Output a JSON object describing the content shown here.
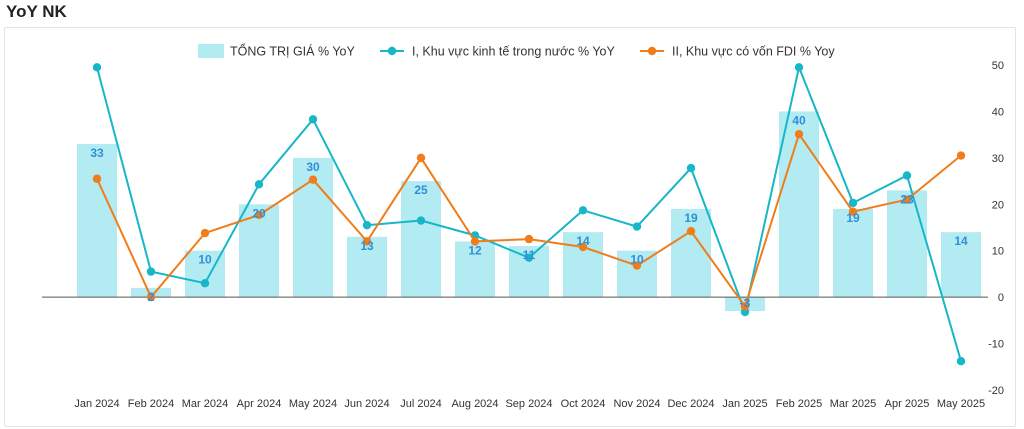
{
  "header": {
    "title": "YoY NK"
  },
  "chart_data": {
    "type": "bar",
    "categories": [
      "Jan 2024",
      "Feb 2024",
      "Mar 2024",
      "Apr 2024",
      "May 2024",
      "Jun 2024",
      "Jul 2024",
      "Aug 2024",
      "Sep 2024",
      "Oct 2024",
      "Nov 2024",
      "Dec 2024",
      "Jan 2025",
      "Feb 2025",
      "Mar 2025",
      "Apr 2025",
      "May 2025"
    ],
    "series": [
      {
        "name": "TỔNG TRỊ GIÁ % YoY",
        "kind": "bar",
        "color": "#b3ebf2",
        "values": [
          33,
          2,
          10,
          20,
          30,
          13,
          25,
          12,
          11,
          14,
          10,
          19,
          -3,
          40,
          19,
          23,
          14
        ]
      },
      {
        "name": "I, Khu vực kinh tế trong nước % YoY",
        "kind": "line",
        "color": "#17b6c9",
        "values": [
          49.5,
          5.5,
          3,
          24.3,
          38.3,
          15.5,
          16.5,
          13.3,
          8.5,
          18.7,
          15.2,
          27.8,
          -3.2,
          49.5,
          20.3,
          26.2,
          -13.8
        ]
      },
      {
        "name": "II, Khu vực có vốn FDI % Yoy",
        "kind": "line",
        "color": "#f07d1a",
        "values": [
          25.5,
          0,
          13.8,
          17.7,
          25.3,
          12,
          30,
          12,
          12.5,
          10.8,
          6.8,
          14.2,
          -2,
          35.1,
          18.4,
          21,
          30.5
        ]
      }
    ],
    "data_labels": [
      "33",
      "2",
      "10",
      "20",
      "30",
      "13",
      "25",
      "12",
      "11",
      "14",
      "10",
      "19",
      "-3",
      "40",
      "19",
      "23",
      "14"
    ],
    "ylim": [
      -20,
      50
    ],
    "yticks": [
      -20,
      -10,
      0,
      10,
      20,
      30,
      40,
      50
    ],
    "y_axis_position": "right",
    "legend_position": "top",
    "grid": false
  }
}
